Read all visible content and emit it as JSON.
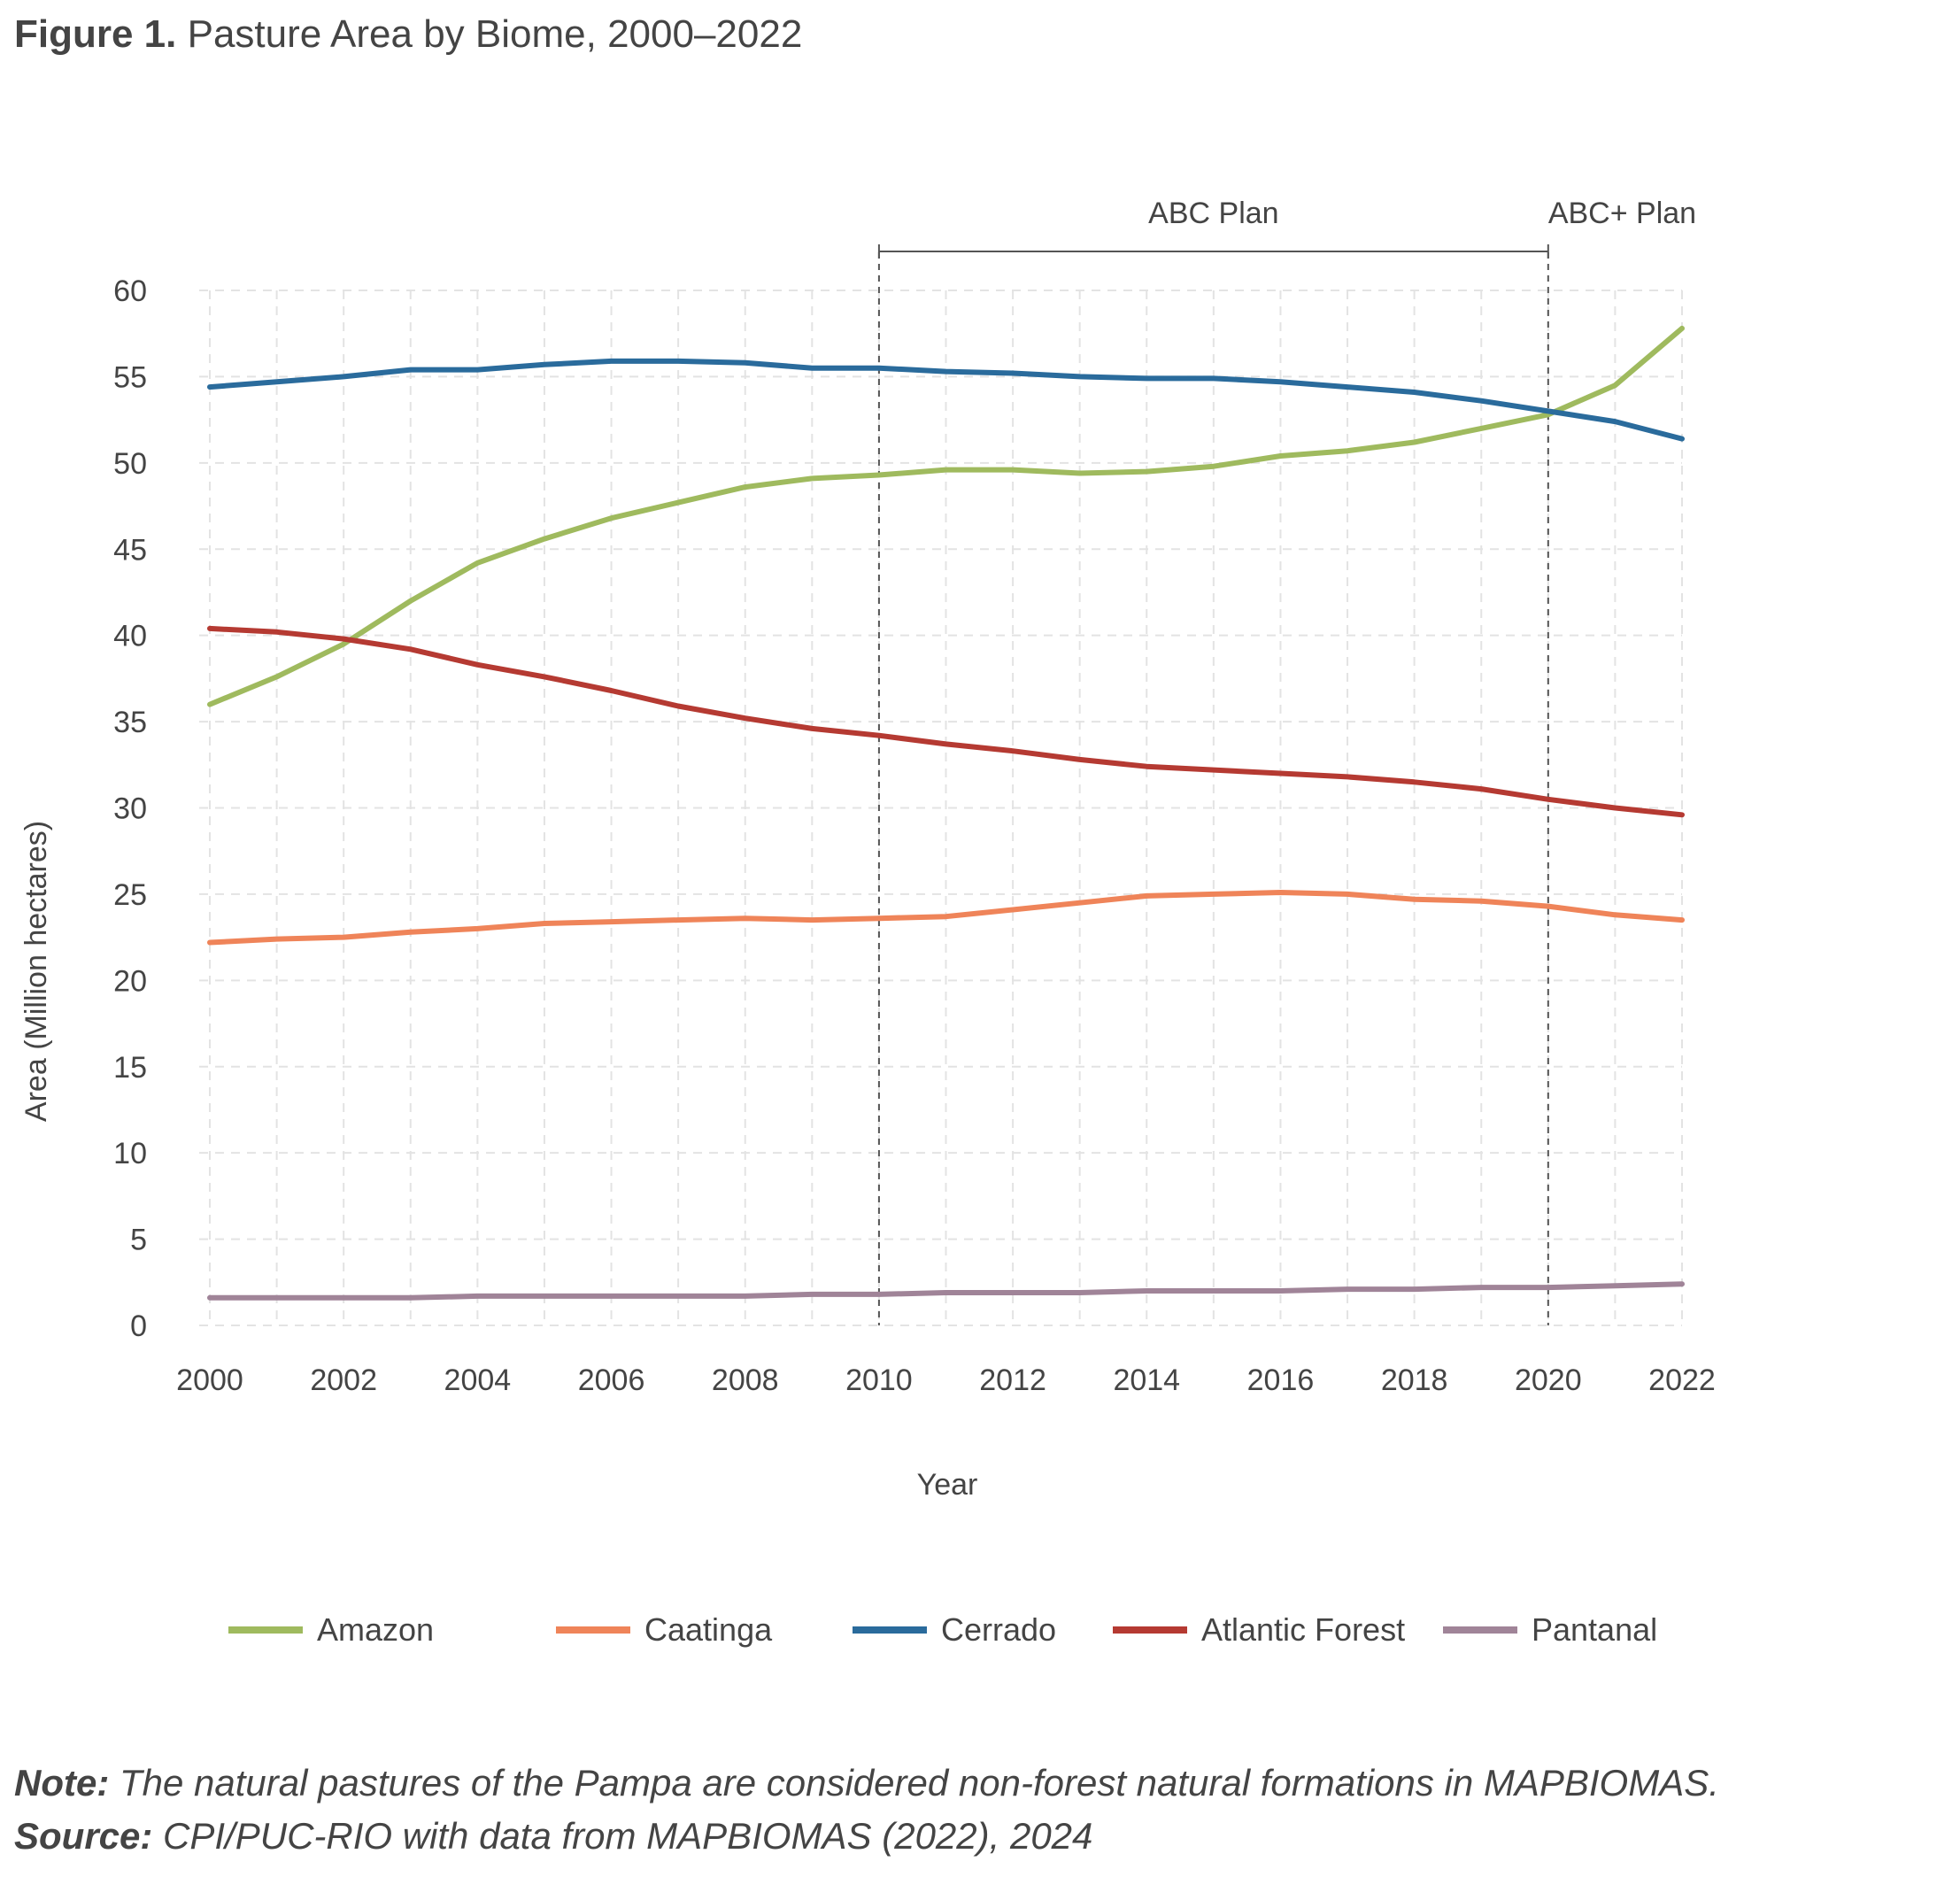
{
  "figure": {
    "label": "Figure 1.",
    "title": "Pasture Area by Biome, 2000–2022"
  },
  "note": {
    "label": "Note:",
    "text": "The natural pastures of the Pampa are considered non-forest natural formations in MAPBIOMAS."
  },
  "source": {
    "label": "Source:",
    "text": "CPI/PUC-RIO with data from MAPBIOMAS (2022), 2024"
  },
  "chart_data": {
    "type": "line",
    "xlabel": "Year",
    "ylabel": "Area (Million hectares)",
    "xlim": [
      2000,
      2022
    ],
    "ylim": [
      0,
      60
    ],
    "x_ticks": [
      "2000",
      "2002",
      "2004",
      "2006",
      "2008",
      "2010",
      "2012",
      "2014",
      "2016",
      "2018",
      "2020",
      "2022"
    ],
    "y_ticks": [
      "0",
      "5",
      "10",
      "15",
      "20",
      "25",
      "30",
      "35",
      "40",
      "45",
      "50",
      "55",
      "60"
    ],
    "grid": true,
    "legend_position": "bottom",
    "x": [
      2000,
      2001,
      2002,
      2003,
      2004,
      2005,
      2006,
      2007,
      2008,
      2009,
      2010,
      2011,
      2012,
      2013,
      2014,
      2015,
      2016,
      2017,
      2018,
      2019,
      2020,
      2021,
      2022
    ],
    "series": [
      {
        "name": "Amazon",
        "color": "#9fba5e",
        "values": [
          36.0,
          37.6,
          39.5,
          42.0,
          44.2,
          45.6,
          46.8,
          47.7,
          48.6,
          49.1,
          49.3,
          49.6,
          49.6,
          49.4,
          49.5,
          49.8,
          50.4,
          50.7,
          51.2,
          52.0,
          52.8,
          54.5,
          57.8
        ]
      },
      {
        "name": "Caatinga",
        "color": "#ef8459",
        "values": [
          22.2,
          22.4,
          22.5,
          22.8,
          23.0,
          23.3,
          23.4,
          23.5,
          23.6,
          23.5,
          23.6,
          23.7,
          24.1,
          24.5,
          24.9,
          25.0,
          25.1,
          25.0,
          24.7,
          24.6,
          24.3,
          23.8,
          23.5
        ]
      },
      {
        "name": "Cerrado",
        "color": "#2a6b9c",
        "values": [
          54.4,
          54.7,
          55.0,
          55.4,
          55.4,
          55.7,
          55.9,
          55.9,
          55.8,
          55.5,
          55.5,
          55.3,
          55.2,
          55.0,
          54.9,
          54.9,
          54.7,
          54.4,
          54.1,
          53.6,
          53.0,
          52.4,
          51.4
        ]
      },
      {
        "name": "Atlantic Forest",
        "color": "#b53a32",
        "values": [
          40.4,
          40.2,
          39.8,
          39.2,
          38.3,
          37.6,
          36.8,
          35.9,
          35.2,
          34.6,
          34.2,
          33.7,
          33.3,
          32.8,
          32.4,
          32.2,
          32.0,
          31.8,
          31.5,
          31.1,
          30.5,
          30.0,
          29.6
        ]
      },
      {
        "name": "Pantanal",
        "color": "#a08498",
        "values": [
          1.6,
          1.6,
          1.6,
          1.6,
          1.7,
          1.7,
          1.7,
          1.7,
          1.7,
          1.8,
          1.8,
          1.9,
          1.9,
          1.9,
          2.0,
          2.0,
          2.0,
          2.1,
          2.1,
          2.2,
          2.2,
          2.3,
          2.4
        ]
      }
    ],
    "annotations": [
      {
        "label": "ABC Plan",
        "x_start": 2010,
        "x_end": 2020
      },
      {
        "label": "ABC+ Plan",
        "x_start": 2020
      }
    ]
  }
}
